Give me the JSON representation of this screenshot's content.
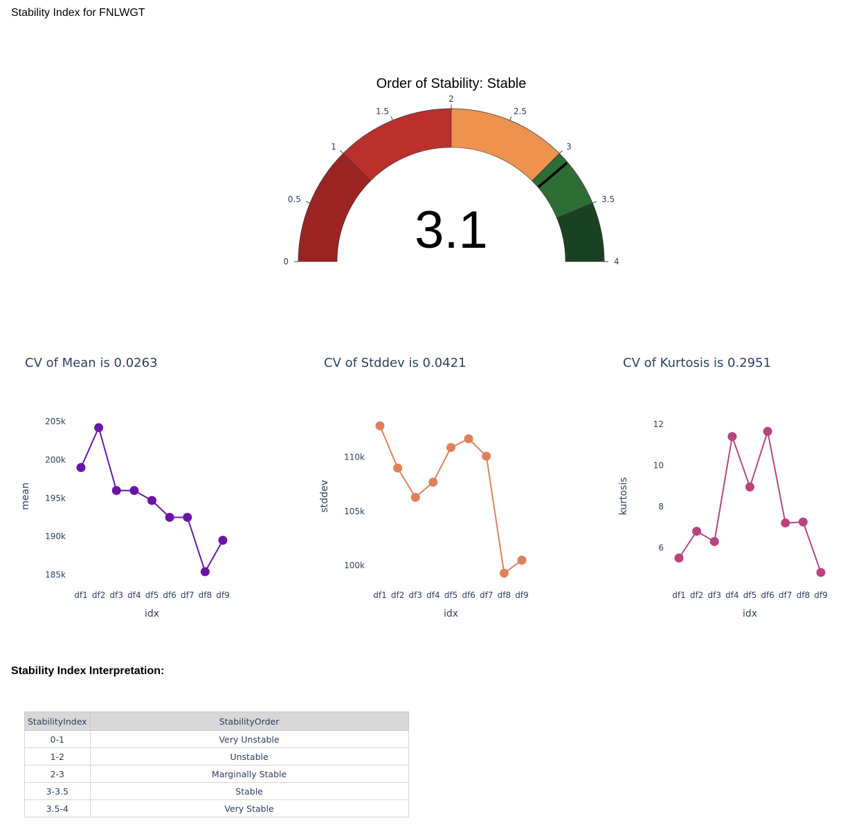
{
  "page": {
    "title": "Stability Index for FNLWGT"
  },
  "gauge": {
    "title": "Order of Stability: Stable",
    "value": 3.1,
    "value_text": "3.1",
    "range": [
      0,
      4
    ],
    "ticks": [
      "0",
      "0.5",
      "1",
      "1.5",
      "2",
      "2.5",
      "3",
      "3.5",
      "4"
    ],
    "tick_values": [
      0,
      0.5,
      1,
      1.5,
      2,
      2.5,
      3,
      3.5,
      4
    ],
    "threshold": 3.1,
    "steps": [
      {
        "range": [
          0,
          1
        ],
        "color": "#9b2321"
      },
      {
        "range": [
          1,
          2
        ],
        "color": "#bb302c"
      },
      {
        "range": [
          2,
          3
        ],
        "color": "#ee924f"
      },
      {
        "range": [
          3,
          3.5
        ],
        "color": "#2e6d36"
      },
      {
        "range": [
          3.5,
          4
        ],
        "color": "#1a4222"
      }
    ]
  },
  "chart_data": [
    {
      "type": "line",
      "title": "CV of Mean is 0.0263",
      "xlabel": "idx",
      "ylabel": "mean",
      "color": "#6a14a8",
      "x": [
        "df1",
        "df2",
        "df3",
        "df4",
        "df5",
        "df6",
        "df7",
        "df8",
        "df9"
      ],
      "values": [
        199000,
        204200,
        196000,
        196000,
        194700,
        192500,
        192500,
        185400,
        189500
      ],
      "yticks": [
        185000,
        190000,
        195000,
        200000,
        205000
      ],
      "ytick_labels": [
        "185k",
        "190k",
        "195k",
        "200k",
        "205k"
      ],
      "ylim": [
        184500,
        206000
      ]
    },
    {
      "type": "line",
      "title": "CV of Stddev is 0.0421",
      "xlabel": "idx",
      "ylabel": "stddev",
      "color": "#e0805a",
      "x": [
        "df1",
        "df2",
        "df3",
        "df4",
        "df5",
        "df6",
        "df7",
        "df8",
        "df9"
      ],
      "values": [
        112900,
        109000,
        106300,
        107700,
        110900,
        111700,
        110100,
        99300,
        100500
      ],
      "yticks": [
        100000,
        105000,
        110000
      ],
      "ytick_labels": [
        "100k",
        "105k",
        "110k"
      ],
      "ylim": [
        98800,
        114000
      ]
    },
    {
      "type": "line",
      "title": "CV of Kurtosis is 0.2951",
      "xlabel": "idx",
      "ylabel": "kurtosis",
      "color": "#b6447f",
      "x": [
        "df1",
        "df2",
        "df3",
        "df4",
        "df5",
        "df6",
        "df7",
        "df8",
        "df9"
      ],
      "values": [
        5.5,
        6.8,
        6.3,
        11.4,
        8.95,
        11.65,
        7.2,
        7.25,
        4.8
      ],
      "yticks": [
        6,
        8,
        10,
        12
      ],
      "ytick_labels": [
        "6",
        "8",
        "10",
        "12"
      ],
      "ylim": [
        4.5,
        12.5
      ]
    }
  ],
  "interpretation": {
    "heading": "Stability Index Interpretation:",
    "columns": [
      "StabilityIndex",
      "StabilityOrder"
    ],
    "rows": [
      [
        "0-1",
        "Very Unstable"
      ],
      [
        "1-2",
        "Unstable"
      ],
      [
        "2-3",
        "Marginally Stable"
      ],
      [
        "3-3.5",
        "Stable"
      ],
      [
        "3.5-4",
        "Very Stable"
      ]
    ]
  }
}
